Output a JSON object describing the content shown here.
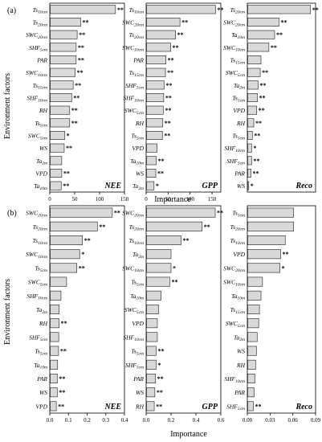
{
  "figure": {
    "ylabel": "Environment factors",
    "xlabel": "Importance"
  },
  "chart_data": [
    {
      "type": "bar",
      "panel": "(a)",
      "label": "NEE",
      "row": 0,
      "col": 0,
      "xlim": [
        0,
        150
      ],
      "xticks": [
        0,
        50,
        100,
        150
      ],
      "ticklabels": [
        "0",
        "50",
        "100",
        "150"
      ],
      "bars": [
        {
          "base": "Ts",
          "sub": "10cm",
          "value": 132,
          "sig": "**"
        },
        {
          "base": "Ts",
          "sub": "20cm",
          "value": 62,
          "sig": "**"
        },
        {
          "base": "SWC",
          "sub": "20cm",
          "value": 55,
          "sig": "**"
        },
        {
          "base": "SHF",
          "sub": "5cm",
          "value": 53,
          "sig": "**"
        },
        {
          "base": "PAR",
          "sub": "",
          "value": 53,
          "sig": "**"
        },
        {
          "base": "SWC",
          "sub": "10cm",
          "value": 51,
          "sig": "**"
        },
        {
          "base": "Ts",
          "sub": "15cm",
          "value": 47,
          "sig": "**"
        },
        {
          "base": "SHF",
          "sub": "10cm",
          "value": 44,
          "sig": "**"
        },
        {
          "base": "RH",
          "sub": "",
          "value": 40,
          "sig": "**"
        },
        {
          "base": "Ts",
          "sub": "5cm",
          "value": 40,
          "sig": "**"
        },
        {
          "base": "SWC",
          "sub": "5cm",
          "value": 30,
          "sig": "*"
        },
        {
          "base": "WS",
          "sub": "",
          "value": 29,
          "sig": "**"
        },
        {
          "base": "Ta",
          "sub": "2m",
          "value": 24,
          "sig": ""
        },
        {
          "base": "VPD",
          "sub": "",
          "value": 24,
          "sig": "**"
        },
        {
          "base": "Ta",
          "sub": "10m",
          "value": 23,
          "sig": "**"
        }
      ]
    },
    {
      "type": "bar",
      "panel": "",
      "label": "GPP",
      "row": 0,
      "col": 1,
      "xlim": [
        0,
        170
      ],
      "xticks": [
        0,
        50,
        100,
        150
      ],
      "ticklabels": [
        "0",
        "50",
        "100",
        "150"
      ],
      "bars": [
        {
          "base": "Ts",
          "sub": "10cm",
          "value": 158,
          "sig": "**"
        },
        {
          "base": "SWC",
          "sub": "20cm",
          "value": 77,
          "sig": "**"
        },
        {
          "base": "Ts",
          "sub": "20cm",
          "value": 67,
          "sig": "**"
        },
        {
          "base": "SWC",
          "sub": "10cm",
          "value": 56,
          "sig": "**"
        },
        {
          "base": "PAR",
          "sub": "",
          "value": 45,
          "sig": "**"
        },
        {
          "base": "Ts",
          "sub": "15cm",
          "value": 44,
          "sig": "**"
        },
        {
          "base": "SHF",
          "sub": "5cm",
          "value": 41,
          "sig": "**"
        },
        {
          "base": "SHF",
          "sub": "10cm",
          "value": 40,
          "sig": "**"
        },
        {
          "base": "SWC",
          "sub": "5cm",
          "value": 39,
          "sig": "**"
        },
        {
          "base": "RH",
          "sub": "",
          "value": 38,
          "sig": "**"
        },
        {
          "base": "Ts",
          "sub": "5cm",
          "value": 37,
          "sig": "**"
        },
        {
          "base": "VPD",
          "sub": "",
          "value": 25,
          "sig": ""
        },
        {
          "base": "Ta",
          "sub": "10m",
          "value": 23,
          "sig": "**"
        },
        {
          "base": "WS",
          "sub": "",
          "value": 22,
          "sig": "**"
        },
        {
          "base": "Ta",
          "sub": "2m",
          "value": 18,
          "sig": "*"
        }
      ]
    },
    {
      "type": "bar",
      "panel": "",
      "label": "Reco",
      "row": 0,
      "col": 2,
      "xlim": [
        0,
        95
      ],
      "xticks": [],
      "ticklabels": [],
      "bars": [
        {
          "base": "Ts",
          "sub": "20cm",
          "value": 88,
          "sig": "**"
        },
        {
          "base": "SWC",
          "sub": "20cm",
          "value": 44,
          "sig": "**"
        },
        {
          "base": "Ta",
          "sub": "10m",
          "value": 38,
          "sig": "**"
        },
        {
          "base": "SWC",
          "sub": "10cm",
          "value": 30,
          "sig": "**"
        },
        {
          "base": "Ts",
          "sub": "15cm",
          "value": 19,
          "sig": ""
        },
        {
          "base": "SWC",
          "sub": "5cm",
          "value": 18,
          "sig": "**"
        },
        {
          "base": "Ta",
          "sub": "2m",
          "value": 15,
          "sig": "**"
        },
        {
          "base": "Ts",
          "sub": "5cm",
          "value": 14,
          "sig": "**"
        },
        {
          "base": "VPD",
          "sub": "",
          "value": 13,
          "sig": "**"
        },
        {
          "base": "RH",
          "sub": "",
          "value": 9,
          "sig": "**"
        },
        {
          "base": "Ts",
          "sub": "5cm",
          "value": 7,
          "sig": "**"
        },
        {
          "base": "SHF",
          "sub": "10cm",
          "value": 6,
          "sig": "*"
        },
        {
          "base": "SHF",
          "sub": "5cm",
          "value": 6,
          "sig": "**"
        },
        {
          "base": "PAR",
          "sub": "",
          "value": 5,
          "sig": "**"
        },
        {
          "base": "WS",
          "sub": "",
          "value": 2,
          "sig": "*"
        }
      ]
    },
    {
      "type": "bar",
      "panel": "(b)",
      "label": "NEE",
      "row": 1,
      "col": 0,
      "xlim": [
        0,
        0.4
      ],
      "xticks": [
        0,
        0.1,
        0.2,
        0.3,
        0.4
      ],
      "ticklabels": [
        "0.0",
        "0.1",
        "0.2",
        "0.3",
        "0.4"
      ],
      "bars": [
        {
          "base": "SWC",
          "sub": "20cm",
          "value": 0.335,
          "sig": "**"
        },
        {
          "base": "Ts",
          "sub": "20cm",
          "value": 0.255,
          "sig": "**"
        },
        {
          "base": "Ts",
          "sub": "10cm",
          "value": 0.175,
          "sig": "**"
        },
        {
          "base": "SWC",
          "sub": "10cm",
          "value": 0.16,
          "sig": "*"
        },
        {
          "base": "Ts",
          "sub": "5cm",
          "value": 0.145,
          "sig": "**"
        },
        {
          "base": "SWC",
          "sub": "5cm",
          "value": 0.09,
          "sig": ""
        },
        {
          "base": "SHF",
          "sub": "10cm",
          "value": 0.06,
          "sig": ""
        },
        {
          "base": "Ta",
          "sub": "2m",
          "value": 0.05,
          "sig": ""
        },
        {
          "base": "RH",
          "sub": "",
          "value": 0.05,
          "sig": "**"
        },
        {
          "base": "SHF",
          "sub": "5cm",
          "value": 0.048,
          "sig": ""
        },
        {
          "base": "Ts",
          "sub": "5cm",
          "value": 0.047,
          "sig": "**"
        },
        {
          "base": "Ta",
          "sub": "10m",
          "value": 0.042,
          "sig": ""
        },
        {
          "base": "PAR",
          "sub": "",
          "value": 0.04,
          "sig": "**"
        },
        {
          "base": "WS",
          "sub": "",
          "value": 0.04,
          "sig": "**"
        },
        {
          "base": "VPD",
          "sub": "",
          "value": 0.035,
          "sig": "**"
        }
      ]
    },
    {
      "type": "bar",
      "panel": "",
      "label": "GPP",
      "row": 1,
      "col": 1,
      "xlim": [
        0,
        0.6
      ],
      "xticks": [
        0,
        0.2,
        0.4,
        0.6
      ],
      "ticklabels": [
        "0.0",
        "0.2",
        "0.4",
        "0.6"
      ],
      "bars": [
        {
          "base": "SWC",
          "sub": "20cm",
          "value": 0.555,
          "sig": "**"
        },
        {
          "base": "Ts",
          "sub": "20cm",
          "value": 0.45,
          "sig": "**"
        },
        {
          "base": "Ts",
          "sub": "10cm",
          "value": 0.28,
          "sig": "**"
        },
        {
          "base": "Ta",
          "sub": "2m",
          "value": 0.2,
          "sig": ""
        },
        {
          "base": "SWC",
          "sub": "10cm",
          "value": 0.2,
          "sig": "*"
        },
        {
          "base": "Ts",
          "sub": "5cm",
          "value": 0.19,
          "sig": "**"
        },
        {
          "base": "Ta",
          "sub": "10m",
          "value": 0.12,
          "sig": ""
        },
        {
          "base": "SWC",
          "sub": "5cm",
          "value": 0.1,
          "sig": ""
        },
        {
          "base": "VPD",
          "sub": "",
          "value": 0.09,
          "sig": ""
        },
        {
          "base": "SHF",
          "sub": "10cm",
          "value": 0.09,
          "sig": ""
        },
        {
          "base": "Ts",
          "sub": "5cm",
          "value": 0.08,
          "sig": "**"
        },
        {
          "base": "SHF",
          "sub": "5cm",
          "value": 0.08,
          "sig": "*"
        },
        {
          "base": "PAR",
          "sub": "",
          "value": 0.075,
          "sig": "**"
        },
        {
          "base": "WS",
          "sub": "",
          "value": 0.07,
          "sig": "**"
        },
        {
          "base": "RH",
          "sub": "",
          "value": 0.065,
          "sig": "**"
        }
      ]
    },
    {
      "type": "bar",
      "panel": "",
      "label": "Reco",
      "row": 1,
      "col": 2,
      "xlim": [
        0,
        0.09
      ],
      "xticks": [
        0,
        0.03,
        0.06,
        0.09
      ],
      "ticklabels": [
        "0.00",
        "0.03",
        "0.06",
        "0.09"
      ],
      "bars": [
        {
          "base": "Ts",
          "sub": "5cm",
          "value": 0.061,
          "sig": ""
        },
        {
          "base": "Ts",
          "sub": "20cm",
          "value": 0.061,
          "sig": ""
        },
        {
          "base": "Ts",
          "sub": "10cm",
          "value": 0.05,
          "sig": ""
        },
        {
          "base": "VPD",
          "sub": "",
          "value": 0.044,
          "sig": "**"
        },
        {
          "base": "SWC",
          "sub": "20cm",
          "value": 0.043,
          "sig": "*"
        },
        {
          "base": "SWC",
          "sub": "10cm",
          "value": 0.02,
          "sig": ""
        },
        {
          "base": "Ta",
          "sub": "10m",
          "value": 0.018,
          "sig": ""
        },
        {
          "base": "Ts",
          "sub": "15cm",
          "value": 0.016,
          "sig": ""
        },
        {
          "base": "SWC",
          "sub": "5cm",
          "value": 0.015,
          "sig": ""
        },
        {
          "base": "Ta",
          "sub": "2m",
          "value": 0.013,
          "sig": ""
        },
        {
          "base": "WS",
          "sub": "",
          "value": 0.012,
          "sig": ""
        },
        {
          "base": "RH",
          "sub": "",
          "value": 0.011,
          "sig": ""
        },
        {
          "base": "SHF",
          "sub": "10cm",
          "value": 0.01,
          "sig": ""
        },
        {
          "base": "PAR",
          "sub": "",
          "value": 0.009,
          "sig": ""
        },
        {
          "base": "SHF",
          "sub": "5cm",
          "value": 0.008,
          "sig": "**"
        }
      ]
    }
  ]
}
